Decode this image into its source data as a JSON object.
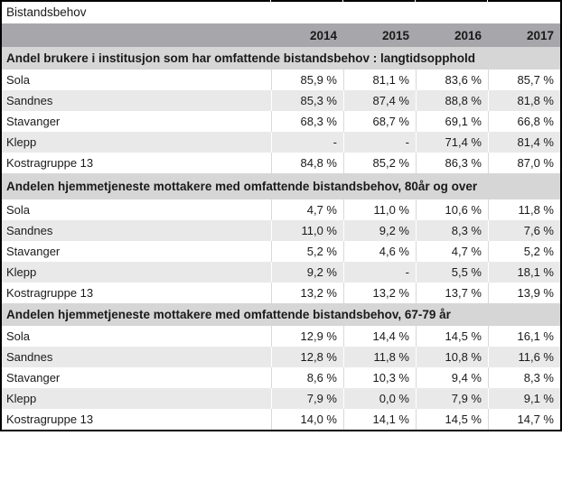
{
  "title": "Bistandsbehov",
  "columns": [
    "2014",
    "2015",
    "2016",
    "2017"
  ],
  "sections": [
    {
      "header": "Andel brukere i institusjon som har omfattende bistandsbehov : langtidsopphold",
      "rows": [
        {
          "label": "Sola",
          "values": [
            "85,9 %",
            "81,1 %",
            "83,6 %",
            "85,7 %"
          ]
        },
        {
          "label": "Sandnes",
          "values": [
            "85,3 %",
            "87,4 %",
            "88,8 %",
            "81,8 %"
          ]
        },
        {
          "label": "Stavanger",
          "values": [
            "68,3 %",
            "68,7 %",
            "69,1 %",
            "66,8 %"
          ]
        },
        {
          "label": "Klepp",
          "values": [
            "-",
            "-",
            "71,4 %",
            "81,4 %"
          ]
        },
        {
          "label": "Kostragruppe 13",
          "values": [
            "84,8 %",
            "85,2 %",
            "86,3 %",
            "87,0 %"
          ]
        }
      ]
    },
    {
      "header": "Andelen hjemmetjeneste mottakere med omfattende bistandsbehov, 80år og over",
      "rows": [
        {
          "label": "Sola",
          "values": [
            "4,7 %",
            "11,0 %",
            "10,6 %",
            "11,8 %"
          ]
        },
        {
          "label": "Sandnes",
          "values": [
            "11,0 %",
            "9,2 %",
            "8,3 %",
            "7,6 %"
          ]
        },
        {
          "label": "Stavanger",
          "values": [
            "5,2 %",
            "4,6 %",
            "4,7 %",
            "5,2 %"
          ]
        },
        {
          "label": "Klepp",
          "values": [
            "9,2 %",
            "-",
            "5,5 %",
            "18,1 %"
          ]
        },
        {
          "label": "Kostragruppe 13",
          "values": [
            "13,2 %",
            "13,2 %",
            "13,7 %",
            "13,9 %"
          ]
        }
      ]
    },
    {
      "header": "Andelen hjemmetjeneste mottakere med omfattende bistandsbehov, 67-79 år",
      "rows": [
        {
          "label": "Sola",
          "values": [
            "12,9 %",
            "14,4 %",
            "14,5 %",
            "16,1 %"
          ]
        },
        {
          "label": "Sandnes",
          "values": [
            "12,8 %",
            "11,8 %",
            "10,8 %",
            "11,6 %"
          ]
        },
        {
          "label": "Stavanger",
          "values": [
            "8,6 %",
            "10,3 %",
            "9,4 %",
            "8,3 %"
          ]
        },
        {
          "label": "Klepp",
          "values": [
            "7,9 %",
            "0,0 %",
            "7,9 %",
            "9,1 %"
          ]
        },
        {
          "label": "Kostragruppe 13",
          "values": [
            "14,0 %",
            "14,1 %",
            "14,5 %",
            "14,7 %"
          ]
        }
      ]
    }
  ],
  "colors": {
    "border": "#000000",
    "header_bg": "#a6a6ab",
    "section_bg": "#d6d6d6",
    "row_alt_bg": "#e9e9e9",
    "gridline": "#d9d9d9"
  }
}
